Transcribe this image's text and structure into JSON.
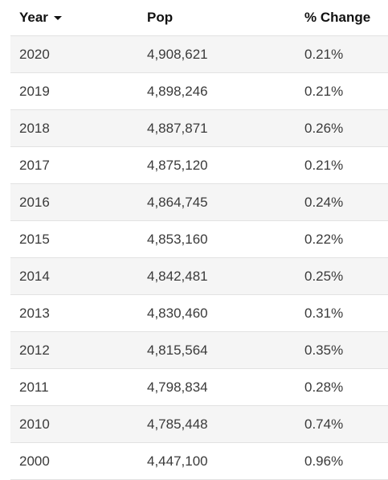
{
  "table": {
    "headers": {
      "year": "Year",
      "pop": "Pop",
      "change": "% Change"
    },
    "sort_icon": "caret-down-icon",
    "rows": [
      {
        "year": "2020",
        "pop": "4,908,621",
        "change": "0.21%"
      },
      {
        "year": "2019",
        "pop": "4,898,246",
        "change": "0.21%"
      },
      {
        "year": "2018",
        "pop": "4,887,871",
        "change": "0.26%"
      },
      {
        "year": "2017",
        "pop": "4,875,120",
        "change": "0.21%"
      },
      {
        "year": "2016",
        "pop": "4,864,745",
        "change": "0.24%"
      },
      {
        "year": "2015",
        "pop": "4,853,160",
        "change": "0.22%"
      },
      {
        "year": "2014",
        "pop": "4,842,481",
        "change": "0.25%"
      },
      {
        "year": "2013",
        "pop": "4,830,460",
        "change": "0.31%"
      },
      {
        "year": "2012",
        "pop": "4,815,564",
        "change": "0.35%"
      },
      {
        "year": "2011",
        "pop": "4,798,834",
        "change": "0.28%"
      },
      {
        "year": "2010",
        "pop": "4,785,448",
        "change": "0.74%"
      },
      {
        "year": "2000",
        "pop": "4,447,100",
        "change": "0.96%"
      }
    ]
  }
}
